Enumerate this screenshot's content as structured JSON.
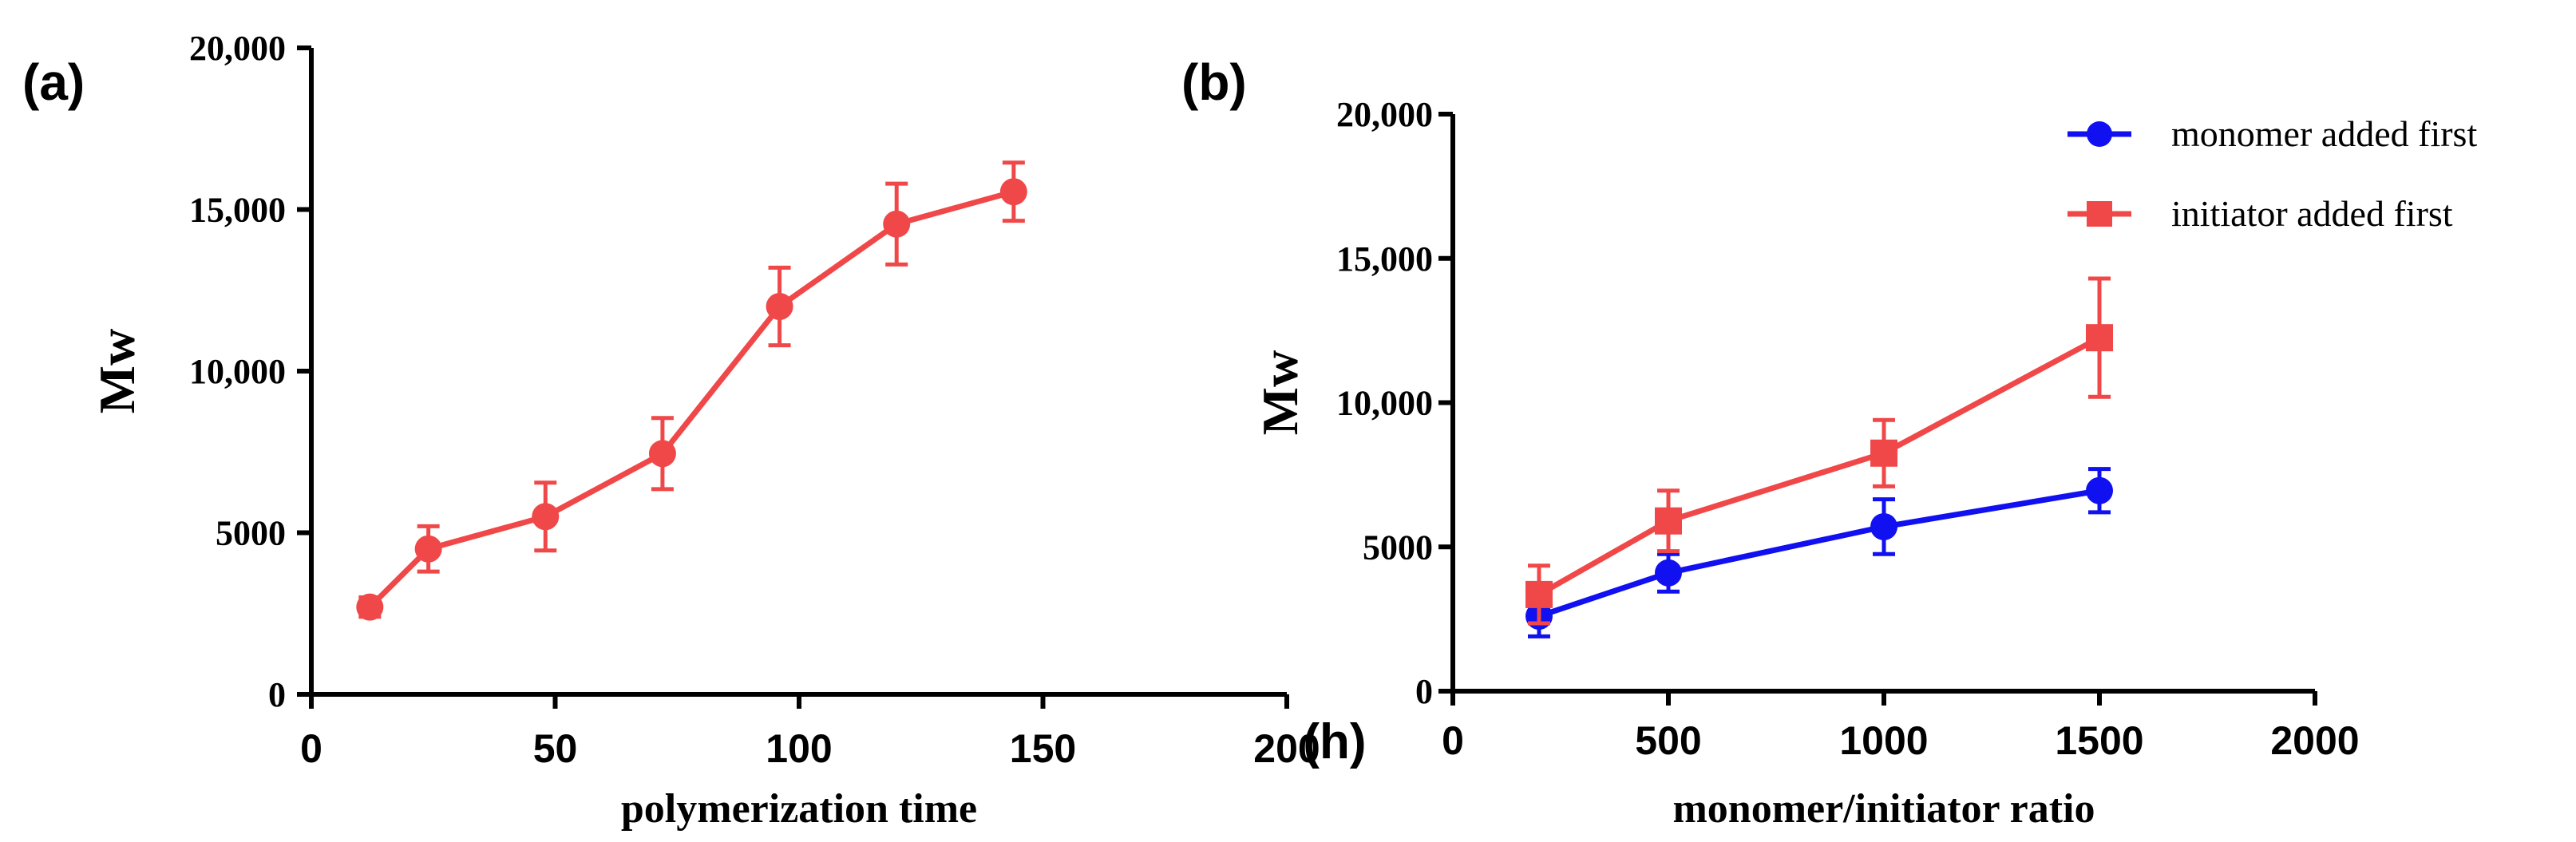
{
  "chart_data": [
    {
      "type": "line",
      "panel_label": "(a)",
      "title": "",
      "xlabel": "polymerization time",
      "x_unit": "(h)",
      "ylabel": "Mw",
      "xlim": [
        0,
        200
      ],
      "ylim": [
        0,
        20000
      ],
      "x_ticks": [
        0,
        50,
        100,
        150,
        200
      ],
      "x_tick_labels": [
        "0",
        "50",
        "100",
        "150",
        "200"
      ],
      "y_ticks": [
        0,
        5000,
        10000,
        15000,
        20000
      ],
      "y_tick_labels": [
        "0",
        "5000",
        "10,000",
        "15,000",
        "20,000"
      ],
      "grid": false,
      "series": [
        {
          "name": "",
          "color": "#f04848",
          "marker": "circle",
          "x": [
            12,
            24,
            48,
            72,
            96,
            120,
            144
          ],
          "y": [
            2700,
            4500,
            5500,
            7450,
            12000,
            14550,
            15550
          ],
          "err": [
            300,
            700,
            1050,
            1100,
            1200,
            1250,
            900
          ]
        }
      ]
    },
    {
      "type": "line",
      "panel_label": "(b)",
      "title": "",
      "xlabel": "monomer/initiator ratio",
      "ylabel": "Mw",
      "xlim": [
        0,
        2000
      ],
      "ylim": [
        0,
        20000
      ],
      "x_ticks": [
        0,
        500,
        1000,
        1500,
        2000
      ],
      "x_tick_labels": [
        "0",
        "500",
        "1000",
        "1500",
        "2000"
      ],
      "y_ticks": [
        0,
        5000,
        10000,
        15000,
        20000
      ],
      "y_tick_labels": [
        "0",
        "5000",
        "10,000",
        "15,000",
        "20,000"
      ],
      "grid": false,
      "legend_position": "top-right",
      "series": [
        {
          "name": "monomer added first",
          "color": "#1010f0",
          "marker": "circle",
          "x": [
            200,
            500,
            1000,
            1500
          ],
          "y": [
            2600,
            4100,
            5700,
            6950
          ],
          "err": [
            700,
            650,
            950,
            750
          ]
        },
        {
          "name": "initiator added first",
          "color": "#f04848",
          "marker": "square",
          "x": [
            200,
            500,
            1000,
            1500
          ],
          "y": [
            3350,
            5900,
            8250,
            12250
          ],
          "err": [
            1000,
            1050,
            1150,
            2050
          ]
        }
      ]
    }
  ]
}
